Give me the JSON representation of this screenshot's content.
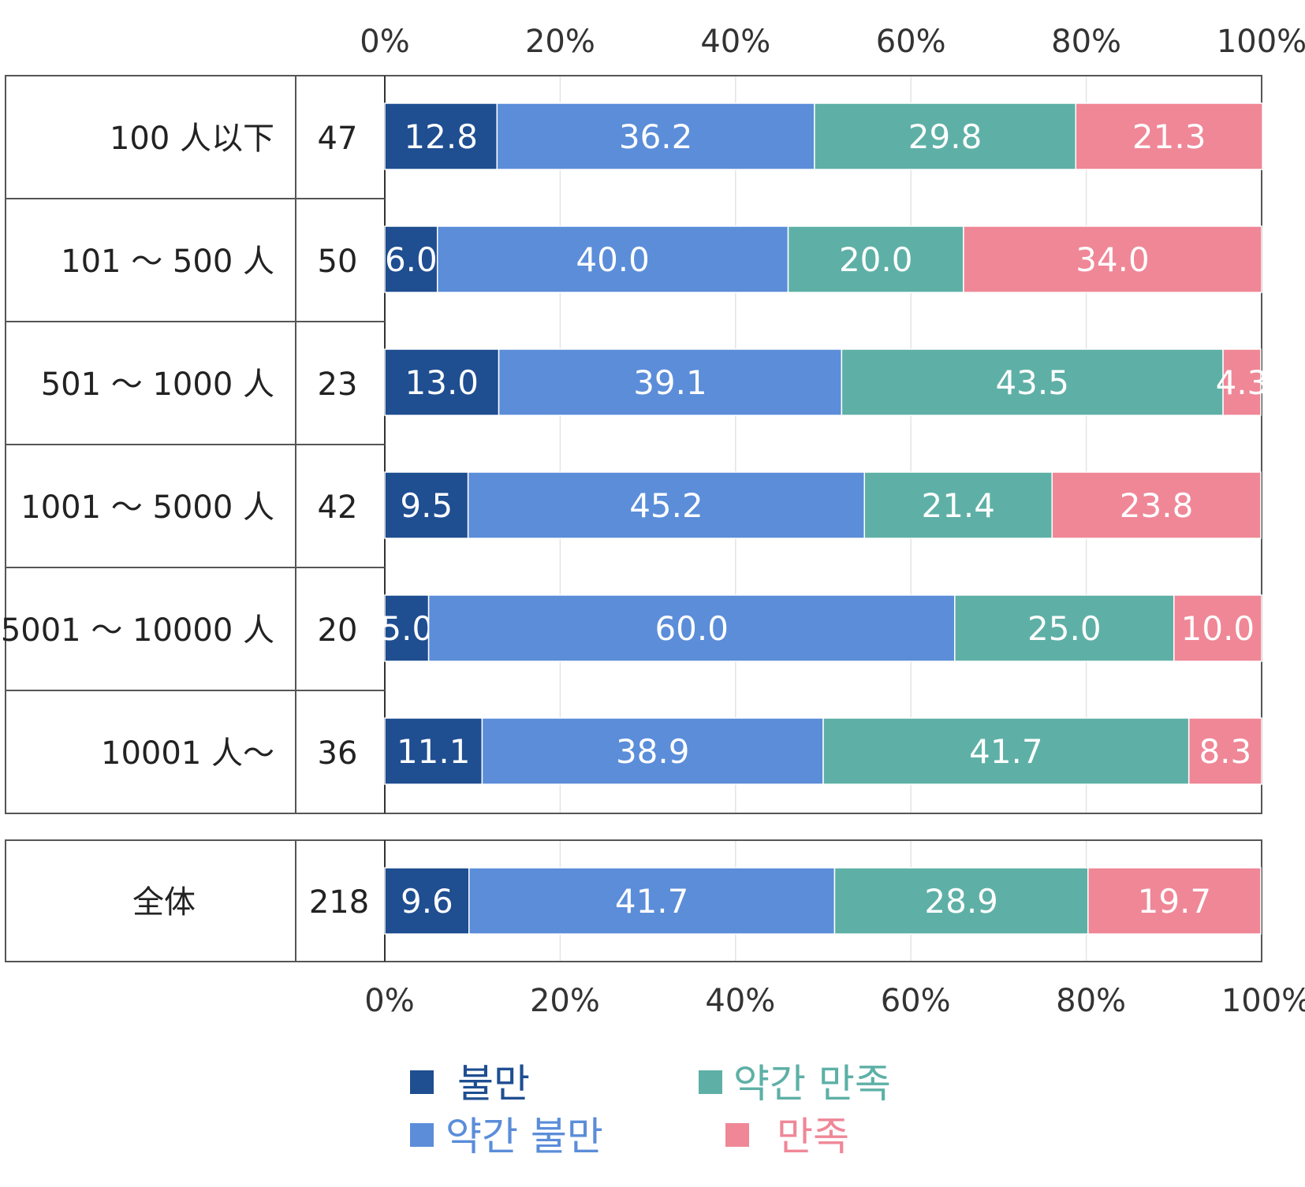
{
  "chart_data": {
    "type": "bar",
    "orientation": "horizontal",
    "stacked": true,
    "xlim": [
      0,
      100
    ],
    "x_ticks": [
      "0%",
      "20%",
      "40%",
      "60%",
      "80%",
      "100%"
    ],
    "categories": [
      "100 人以下",
      "101 〜 500 人",
      "501 〜 1000 人",
      "1001 〜 5000 人",
      "5001 〜 10000 人",
      "10001 人〜"
    ],
    "counts": [
      "47",
      "50",
      "23",
      "42",
      "20",
      "36"
    ],
    "series": [
      {
        "name": "불만",
        "color": "#1f4e91",
        "values": [
          12.8,
          6.0,
          13.0,
          9.5,
          5.0,
          11.1
        ]
      },
      {
        "name": "약간 불만",
        "color": "#5b8dd9",
        "values": [
          36.2,
          40.0,
          39.1,
          45.2,
          60.0,
          38.9
        ]
      },
      {
        "name": "약간 만족",
        "color": "#5eb0a6",
        "values": [
          29.8,
          20.0,
          43.5,
          21.4,
          25.0,
          41.7
        ]
      },
      {
        "name": "만족",
        "color": "#ef8797",
        "values": [
          21.3,
          34.0,
          4.3,
          23.8,
          10.0,
          8.3
        ]
      }
    ],
    "total": {
      "category": "全体",
      "count": "218",
      "values": [
        9.6,
        41.7,
        28.9,
        19.7
      ]
    },
    "legend_position": "bottom",
    "title": "",
    "xlabel": "",
    "ylabel": ""
  }
}
